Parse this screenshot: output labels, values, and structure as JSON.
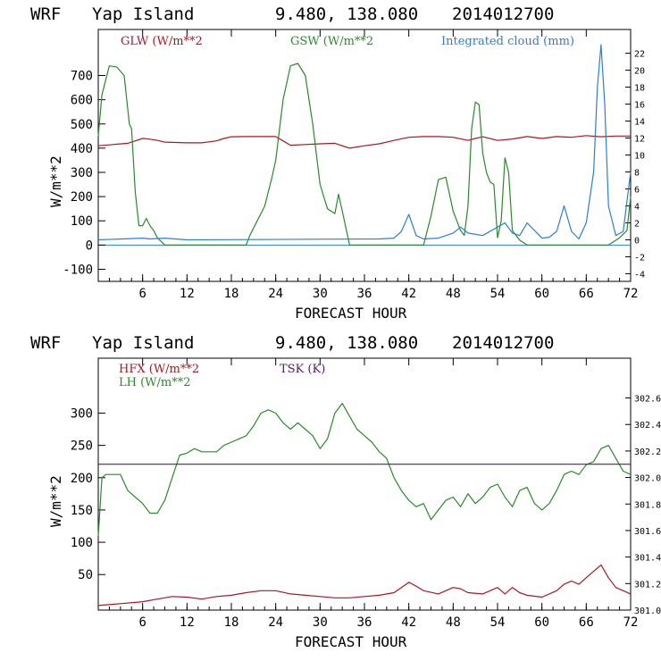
{
  "chart_data": [
    {
      "type": "line",
      "header": {
        "model": "WRF",
        "location": "Yap Island",
        "coords": "9.480, 138.080",
        "init": "2014012700"
      },
      "xlabel": "FORECAST HOUR",
      "ylabel": "W/m**2",
      "xlim": [
        0,
        72
      ],
      "ylim": [
        -150,
        890
      ],
      "y2lim": [
        -4.9,
        24.8
      ],
      "x_ticks": [
        6,
        12,
        18,
        24,
        30,
        36,
        42,
        48,
        54,
        60,
        66,
        72
      ],
      "y_ticks": [
        -100,
        0,
        100,
        200,
        300,
        400,
        500,
        600,
        700
      ],
      "y2_ticks": [
        -4,
        -2,
        0,
        2,
        4,
        6,
        8,
        10,
        12,
        14,
        16,
        18,
        20,
        22
      ],
      "series": [
        {
          "name": "GLW (W/m**2",
          "axis": "left",
          "color": "#b0141e",
          "x": [
            0,
            4,
            4.5,
            6,
            7,
            8,
            9,
            12,
            14,
            16,
            17,
            18,
            20,
            22,
            24,
            25,
            26,
            28,
            30,
            32,
            34,
            36,
            38,
            40,
            42,
            44,
            46,
            48,
            50,
            51,
            52,
            54,
            56,
            58,
            60,
            62,
            64,
            66,
            68,
            70,
            72
          ],
          "values": [
            410,
            420,
            425,
            440,
            437,
            432,
            425,
            422,
            422,
            430,
            440,
            447,
            448,
            448,
            448,
            430,
            412,
            415,
            418,
            420,
            400,
            410,
            418,
            432,
            445,
            448,
            448,
            445,
            432,
            440,
            447,
            432,
            438,
            448,
            440,
            448,
            445,
            452,
            447,
            450,
            450
          ]
        },
        {
          "name": "GSW (W/m**2",
          "axis": "left",
          "color": "#2a8a2a",
          "x": [
            0,
            0.5,
            1.5,
            2.5,
            3.5,
            4.2,
            4.5,
            5,
            5.5,
            6,
            6.5,
            7,
            7.5,
            8,
            9,
            10,
            12,
            20,
            20.5,
            21.5,
            22.5,
            23.5,
            24,
            25,
            26,
            27,
            28,
            29,
            30,
            31,
            32,
            32.5,
            33,
            34,
            40,
            44,
            45,
            46,
            47,
            48,
            49,
            49.5,
            50,
            50.5,
            51,
            51.5,
            52,
            52.5,
            53,
            53.5,
            54,
            54.5,
            55,
            55.5,
            56,
            57,
            58,
            66,
            69,
            70.5,
            71.5,
            72
          ],
          "values": [
            450,
            620,
            740,
            735,
            700,
            500,
            480,
            220,
            80,
            80,
            110,
            80,
            60,
            30,
            0,
            0,
            0,
            0,
            40,
            100,
            160,
            280,
            350,
            600,
            740,
            750,
            700,
            500,
            250,
            150,
            130,
            210,
            140,
            0,
            0,
            0,
            120,
            270,
            280,
            140,
            60,
            40,
            160,
            480,
            590,
            580,
            380,
            300,
            260,
            250,
            30,
            100,
            360,
            300,
            60,
            20,
            0,
            0,
            0,
            30,
            60,
            200
          ]
        },
        {
          "name": "Integrated cloud (mm)",
          "axis": "right",
          "color": "#2a7fd4",
          "x": [
            0,
            6,
            7,
            9,
            12,
            38,
            40,
            41,
            42,
            43,
            44,
            46,
            48,
            49,
            50,
            52,
            54,
            55,
            56,
            57,
            58,
            60,
            61,
            62,
            63,
            64,
            65,
            66,
            67,
            67.5,
            68,
            68.5,
            69,
            70,
            71,
            72
          ],
          "values": [
            0,
            0.2,
            0.1,
            0.2,
            0,
            0.1,
            0.2,
            1,
            3,
            0.5,
            0.1,
            0.2,
            0.8,
            1.5,
            0.8,
            0.5,
            1.5,
            2,
            0.8,
            0.5,
            2,
            0.2,
            0.3,
            1,
            4,
            1,
            0.1,
            2,
            8,
            18,
            23,
            16,
            4,
            0.5,
            1,
            8
          ]
        }
      ]
    },
    {
      "type": "line",
      "header": {
        "model": "WRF",
        "location": "Yap Island",
        "coords": "9.480, 138.080",
        "init": "2014012700"
      },
      "xlabel": "FORECAST HOUR",
      "ylabel": "W/m**2",
      "xlim": [
        0,
        72
      ],
      "ylim": [
        -5,
        385
      ],
      "y2lim": [
        301.0,
        302.9
      ],
      "x_ticks": [
        6,
        12,
        18,
        24,
        30,
        36,
        42,
        48,
        54,
        60,
        66,
        72
      ],
      "y_ticks": [
        50,
        100,
        150,
        200,
        250,
        300
      ],
      "y2_ticks": [
        301.0,
        301.2,
        301.4,
        301.6,
        301.8,
        302.0,
        302.2,
        302.4,
        302.6
      ],
      "y2_tick_labels": [
        "301.0",
        "301.2",
        "301.4",
        "301.6",
        "301.8",
        "302.0",
        "302.2",
        "302.4",
        "302.6"
      ],
      "series": [
        {
          "name": "HFX (W/m**2",
          "axis": "left",
          "color": "#b0141e",
          "x": [
            0,
            3,
            6,
            8,
            10,
            12,
            14,
            16,
            18,
            20,
            22,
            24,
            26,
            28,
            30,
            32,
            34,
            36,
            38,
            40,
            41,
            42,
            43,
            44,
            46,
            47,
            48,
            49,
            50,
            52,
            54,
            55,
            56,
            57,
            58,
            60,
            62,
            63,
            64,
            65,
            66,
            67,
            68,
            69,
            70,
            72
          ],
          "values": [
            2,
            5,
            8,
            12,
            16,
            15,
            12,
            16,
            18,
            22,
            25,
            25,
            20,
            18,
            16,
            14,
            14,
            16,
            18,
            22,
            30,
            38,
            32,
            25,
            20,
            25,
            30,
            28,
            22,
            20,
            30,
            20,
            30,
            22,
            18,
            15,
            25,
            35,
            40,
            35,
            45,
            55,
            65,
            45,
            30,
            20
          ]
        },
        {
          "name": "LH  (W/m**2",
          "axis": "left",
          "color": "#2a8a2a",
          "x": [
            0,
            0.5,
            1,
            3,
            4,
            5,
            6,
            7,
            8,
            9,
            10,
            11,
            12,
            13,
            14,
            16,
            17,
            18,
            19,
            20,
            21,
            22,
            23,
            24,
            25,
            26,
            27,
            28,
            29,
            30,
            31,
            32,
            33,
            34,
            35,
            36,
            37,
            38,
            39,
            40,
            41,
            42,
            43,
            44,
            45,
            46,
            47,
            48,
            49,
            50,
            51,
            52,
            53,
            54,
            55,
            56,
            57,
            58,
            59,
            60,
            61,
            62,
            63,
            64,
            65,
            66,
            67,
            68,
            69,
            70,
            71,
            72
          ],
          "values": [
            110,
            200,
            205,
            205,
            180,
            170,
            160,
            145,
            145,
            165,
            200,
            235,
            238,
            245,
            240,
            240,
            250,
            255,
            260,
            265,
            280,
            300,
            305,
            300,
            285,
            275,
            285,
            275,
            265,
            245,
            260,
            300,
            315,
            295,
            275,
            265,
            255,
            240,
            230,
            200,
            180,
            165,
            155,
            160,
            135,
            150,
            165,
            170,
            155,
            175,
            160,
            170,
            185,
            190,
            170,
            155,
            180,
            185,
            160,
            150,
            160,
            180,
            205,
            210,
            205,
            220,
            225,
            245,
            250,
            230,
            210,
            205
          ]
        },
        {
          "name": "TSK (K)",
          "axis": "right",
          "color": "#5a1a6a",
          "x": [
            0,
            72
          ],
          "values": [
            302.1,
            302.1
          ]
        }
      ]
    }
  ]
}
